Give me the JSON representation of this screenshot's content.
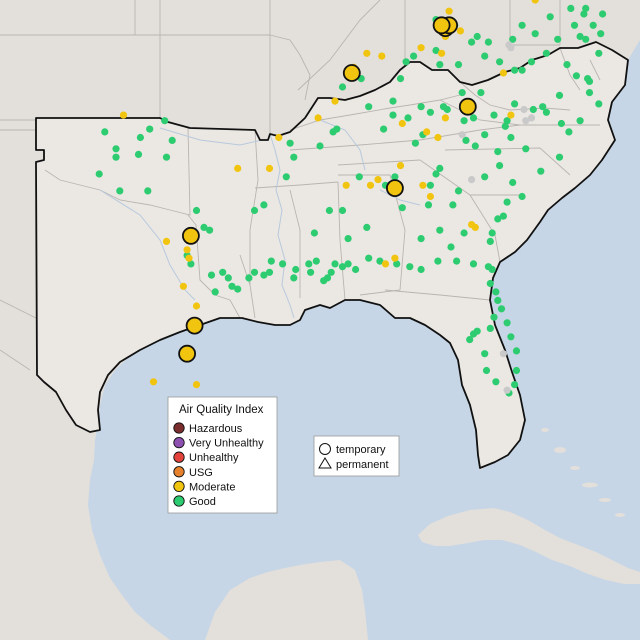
{
  "colors": {
    "ocean": "#c6d6e6",
    "land": "#e3dfda",
    "land_shade": "#d9d4cf",
    "highlight_land": "#ebe8e4",
    "state_border": "#b9b4b0",
    "region_border": "#111111",
    "river": "#b7c9dc"
  },
  "aqi_legend": {
    "title": "Air Quality Index",
    "items": [
      {
        "label": "Hazardous",
        "color": "#7a2d2d"
      },
      {
        "label": "Very Unhealthy",
        "color": "#8e50b0"
      },
      {
        "label": "Unhealthy",
        "color": "#e3423a"
      },
      {
        "label": "USG",
        "color": "#e6822d"
      },
      {
        "label": "Moderate",
        "color": "#f1c40f"
      },
      {
        "label": "Good",
        "color": "#2ecc71"
      }
    ]
  },
  "type_legend": {
    "items": [
      {
        "label": "temporary",
        "shape": "circle"
      },
      {
        "label": "permanent",
        "shape": "triangle"
      }
    ]
  },
  "map_extent": {
    "lon_min": -107.8,
    "lon_max": -73.6,
    "lat_min": 17.0,
    "lat_max": 39.8
  },
  "monitors": {
    "good": [
      [
        -102.2,
        35.1
      ],
      [
        -101.6,
        34.5
      ],
      [
        -101.6,
        34.2
      ],
      [
        -100.4,
        34.3
      ],
      [
        -100.3,
        34.9
      ],
      [
        -99.8,
        35.2
      ],
      [
        -99.0,
        35.5
      ],
      [
        -98.6,
        34.8
      ],
      [
        -98.9,
        34.2
      ],
      [
        -102.5,
        33.6
      ],
      [
        -101.4,
        33.0
      ],
      [
        -99.9,
        33.0
      ],
      [
        -97.3,
        32.3
      ],
      [
        -96.9,
        31.7
      ],
      [
        -97.5,
        31.3
      ],
      [
        -96.6,
        31.6
      ],
      [
        -97.8,
        30.7
      ],
      [
        -97.6,
        30.4
      ],
      [
        -96.5,
        30.0
      ],
      [
        -95.9,
        30.1
      ],
      [
        -95.6,
        29.9
      ],
      [
        -96.3,
        29.4
      ],
      [
        -95.1,
        29.5
      ],
      [
        -95.4,
        29.6
      ],
      [
        -94.5,
        29.9
      ],
      [
        -94.2,
        30.1
      ],
      [
        -93.7,
        30.0
      ],
      [
        -93.4,
        30.1
      ],
      [
        -92.7,
        30.4
      ],
      [
        -92.1,
        29.9
      ],
      [
        -92.0,
        30.2
      ],
      [
        -91.3,
        30.4
      ],
      [
        -91.2,
        30.1
      ],
      [
        -90.9,
        30.5
      ],
      [
        -90.3,
        29.9
      ],
      [
        -90.1,
        30.1
      ],
      [
        -90.5,
        29.8
      ],
      [
        -89.9,
        30.4
      ],
      [
        -89.5,
        30.3
      ],
      [
        -89.2,
        30.4
      ],
      [
        -88.8,
        30.2
      ],
      [
        -88.1,
        30.6
      ],
      [
        -87.5,
        30.5
      ],
      [
        -86.6,
        30.4
      ],
      [
        -85.9,
        30.3
      ],
      [
        -85.3,
        30.2
      ],
      [
        -84.4,
        30.5
      ],
      [
        -83.4,
        30.5
      ],
      [
        -82.5,
        30.4
      ],
      [
        -81.7,
        30.3
      ],
      [
        -81.5,
        30.2
      ],
      [
        -81.6,
        29.7
      ],
      [
        -81.3,
        29.4
      ],
      [
        -81.2,
        29.1
      ],
      [
        -81.0,
        28.8
      ],
      [
        -81.4,
        28.5
      ],
      [
        -81.6,
        28.1
      ],
      [
        -82.3,
        28.0
      ],
      [
        -82.5,
        27.9
      ],
      [
        -82.7,
        27.7
      ],
      [
        -81.9,
        27.2
      ],
      [
        -81.8,
        26.6
      ],
      [
        -81.3,
        26.2
      ],
      [
        -80.6,
        25.8
      ],
      [
        -80.3,
        26.1
      ],
      [
        -80.2,
        26.6
      ],
      [
        -80.2,
        27.3
      ],
      [
        -80.5,
        27.8
      ],
      [
        -80.7,
        28.3
      ],
      [
        -78.9,
        33.7
      ],
      [
        -79.9,
        32.8
      ],
      [
        -80.9,
        32.1
      ],
      [
        -81.2,
        32.0
      ],
      [
        -81.5,
        31.5
      ],
      [
        -81.6,
        31.2
      ],
      [
        -80.7,
        32.6
      ],
      [
        -80.4,
        33.3
      ],
      [
        -81.1,
        33.9
      ],
      [
        -81.9,
        33.5
      ],
      [
        -82.4,
        34.6
      ],
      [
        -82.9,
        34.8
      ],
      [
        -84.3,
        33.8
      ],
      [
        -84.5,
        33.6
      ],
      [
        -84.8,
        33.2
      ],
      [
        -83.3,
        33.0
      ],
      [
        -83.6,
        32.5
      ],
      [
        -84.9,
        32.5
      ],
      [
        -85.3,
        31.3
      ],
      [
        -84.3,
        31.6
      ],
      [
        -83.0,
        31.5
      ],
      [
        -83.7,
        31.0
      ],
      [
        -86.7,
        33.5
      ],
      [
        -87.2,
        33.2
      ],
      [
        -88.6,
        33.5
      ],
      [
        -89.5,
        32.3
      ],
      [
        -90.2,
        32.3
      ],
      [
        -91.0,
        31.5
      ],
      [
        -89.2,
        31.3
      ],
      [
        -88.2,
        31.7
      ],
      [
        -86.3,
        32.4
      ],
      [
        -85.6,
        34.7
      ],
      [
        -85.2,
        35.0
      ],
      [
        -86.8,
        36.2
      ],
      [
        -86.8,
        35.7
      ],
      [
        -87.3,
        35.2
      ],
      [
        -88.1,
        36.0
      ],
      [
        -89.8,
        35.2
      ],
      [
        -90.0,
        35.1
      ],
      [
        -90.7,
        34.6
      ],
      [
        -92.3,
        34.7
      ],
      [
        -92.1,
        34.2
      ],
      [
        -92.5,
        33.5
      ],
      [
        -93.7,
        32.5
      ],
      [
        -94.2,
        32.3
      ],
      [
        -93.3,
        30.5
      ],
      [
        -89.5,
        36.7
      ],
      [
        -88.5,
        37.0
      ],
      [
        -86.4,
        37.0
      ],
      [
        -86.1,
        37.6
      ],
      [
        -85.7,
        37.8
      ],
      [
        -84.5,
        38.0
      ],
      [
        -84.3,
        37.5
      ],
      [
        -83.3,
        37.5
      ],
      [
        -82.6,
        38.3
      ],
      [
        -82.3,
        38.5
      ],
      [
        -83.5,
        38.9
      ],
      [
        -84.5,
        39.1
      ],
      [
        -81.7,
        38.3
      ],
      [
        -81.9,
        37.8
      ],
      [
        -81.1,
        37.6
      ],
      [
        -80.3,
        37.3
      ],
      [
        -79.9,
        37.3
      ],
      [
        -79.4,
        37.6
      ],
      [
        -78.6,
        37.9
      ],
      [
        -78.0,
        38.4
      ],
      [
        -77.5,
        37.5
      ],
      [
        -77.0,
        37.1
      ],
      [
        -76.3,
        36.9
      ],
      [
        -76.4,
        37.0
      ],
      [
        -77.9,
        36.4
      ],
      [
        -78.8,
        36.0
      ],
      [
        -78.6,
        35.8
      ],
      [
        -79.3,
        35.9
      ],
      [
        -80.3,
        36.1
      ],
      [
        -80.7,
        35.5
      ],
      [
        -80.8,
        35.3
      ],
      [
        -81.4,
        35.7
      ],
      [
        -82.5,
        35.6
      ],
      [
        -83.0,
        35.5
      ],
      [
        -83.9,
        35.9
      ],
      [
        -84.1,
        36.0
      ],
      [
        -84.8,
        35.8
      ],
      [
        -85.3,
        36.0
      ],
      [
        -86.0,
        35.6
      ],
      [
        -77.4,
        35.1
      ],
      [
        -77.9,
        34.2
      ],
      [
        -79.7,
        34.5
      ],
      [
        -80.5,
        34.9
      ],
      [
        -81.9,
        35.0
      ],
      [
        -82.1,
        36.5
      ],
      [
        -83.1,
        36.5
      ],
      [
        -80.4,
        38.4
      ],
      [
        -79.9,
        38.9
      ],
      [
        -79.2,
        38.6
      ],
      [
        -78.4,
        39.2
      ],
      [
        -77.1,
        38.9
      ],
      [
        -76.8,
        38.5
      ],
      [
        -76.6,
        39.3
      ],
      [
        -76.5,
        38.4
      ],
      [
        -76.1,
        38.9
      ],
      [
        -75.6,
        39.3
      ],
      [
        -75.7,
        38.6
      ],
      [
        -76.5,
        39.5
      ],
      [
        -77.3,
        39.5
      ],
      [
        -75.8,
        37.9
      ],
      [
        -76.3,
        36.5
      ],
      [
        -75.8,
        36.1
      ],
      [
        -76.8,
        35.5
      ],
      [
        -77.8,
        35.4
      ],
      [
        -81.2,
        34.4
      ]
    ],
    "moderate": [
      [
        -101.2,
        35.7
      ],
      [
        -98.9,
        31.2
      ],
      [
        -97.8,
        30.9
      ],
      [
        -98.0,
        29.6
      ],
      [
        -97.3,
        28.9
      ],
      [
        -99.6,
        26.2
      ],
      [
        -97.3,
        26.1
      ],
      [
        -95.1,
        33.8
      ],
      [
        -93.4,
        33.8
      ],
      [
        -92.9,
        34.9
      ],
      [
        -90.8,
        35.6
      ],
      [
        -89.9,
        36.2
      ],
      [
        -88.9,
        37.4
      ],
      [
        -88.2,
        37.9
      ],
      [
        -87.4,
        37.8
      ],
      [
        -85.3,
        38.1
      ],
      [
        -84.2,
        37.9
      ],
      [
        -84.0,
        38.5
      ],
      [
        -83.2,
        38.7
      ],
      [
        -84.0,
        35.6
      ],
      [
        -85.0,
        35.1
      ],
      [
        -84.4,
        34.9
      ],
      [
        -86.3,
        35.4
      ],
      [
        -86.4,
        33.9
      ],
      [
        -87.6,
        33.4
      ],
      [
        -89.3,
        33.2
      ],
      [
        -88.0,
        33.2
      ],
      [
        -86.7,
        30.6
      ],
      [
        -87.2,
        30.4
      ],
      [
        -85.2,
        33.2
      ],
      [
        -84.8,
        32.8
      ],
      [
        -82.4,
        31.7
      ],
      [
        -82.6,
        31.8
      ],
      [
        -80.5,
        35.7
      ],
      [
        -80.9,
        37.2
      ],
      [
        -79.2,
        39.8
      ],
      [
        -83.8,
        39.4
      ],
      [
        -97.7,
        30.6
      ]
    ],
    "good_gray": [
      [
        -80.6,
        38.2
      ],
      [
        -80.5,
        38.1
      ],
      [
        -79.8,
        35.9
      ],
      [
        -79.7,
        35.5
      ],
      [
        -79.4,
        35.6
      ],
      [
        -83.1,
        35.0
      ],
      [
        -82.6,
        33.4
      ],
      [
        -80.7,
        25.9
      ],
      [
        -80.9,
        27.2
      ]
    ],
    "temporary_moderate": [
      [
        -97.6,
        31.4
      ],
      [
        -97.4,
        28.2
      ],
      [
        -97.8,
        27.2
      ],
      [
        -89.0,
        37.2
      ],
      [
        -84.0,
        38.8
      ],
      [
        -83.8,
        38.9
      ],
      [
        -84.2,
        38.9
      ],
      [
        -86.7,
        33.1
      ],
      [
        -82.8,
        36.0
      ]
    ]
  }
}
